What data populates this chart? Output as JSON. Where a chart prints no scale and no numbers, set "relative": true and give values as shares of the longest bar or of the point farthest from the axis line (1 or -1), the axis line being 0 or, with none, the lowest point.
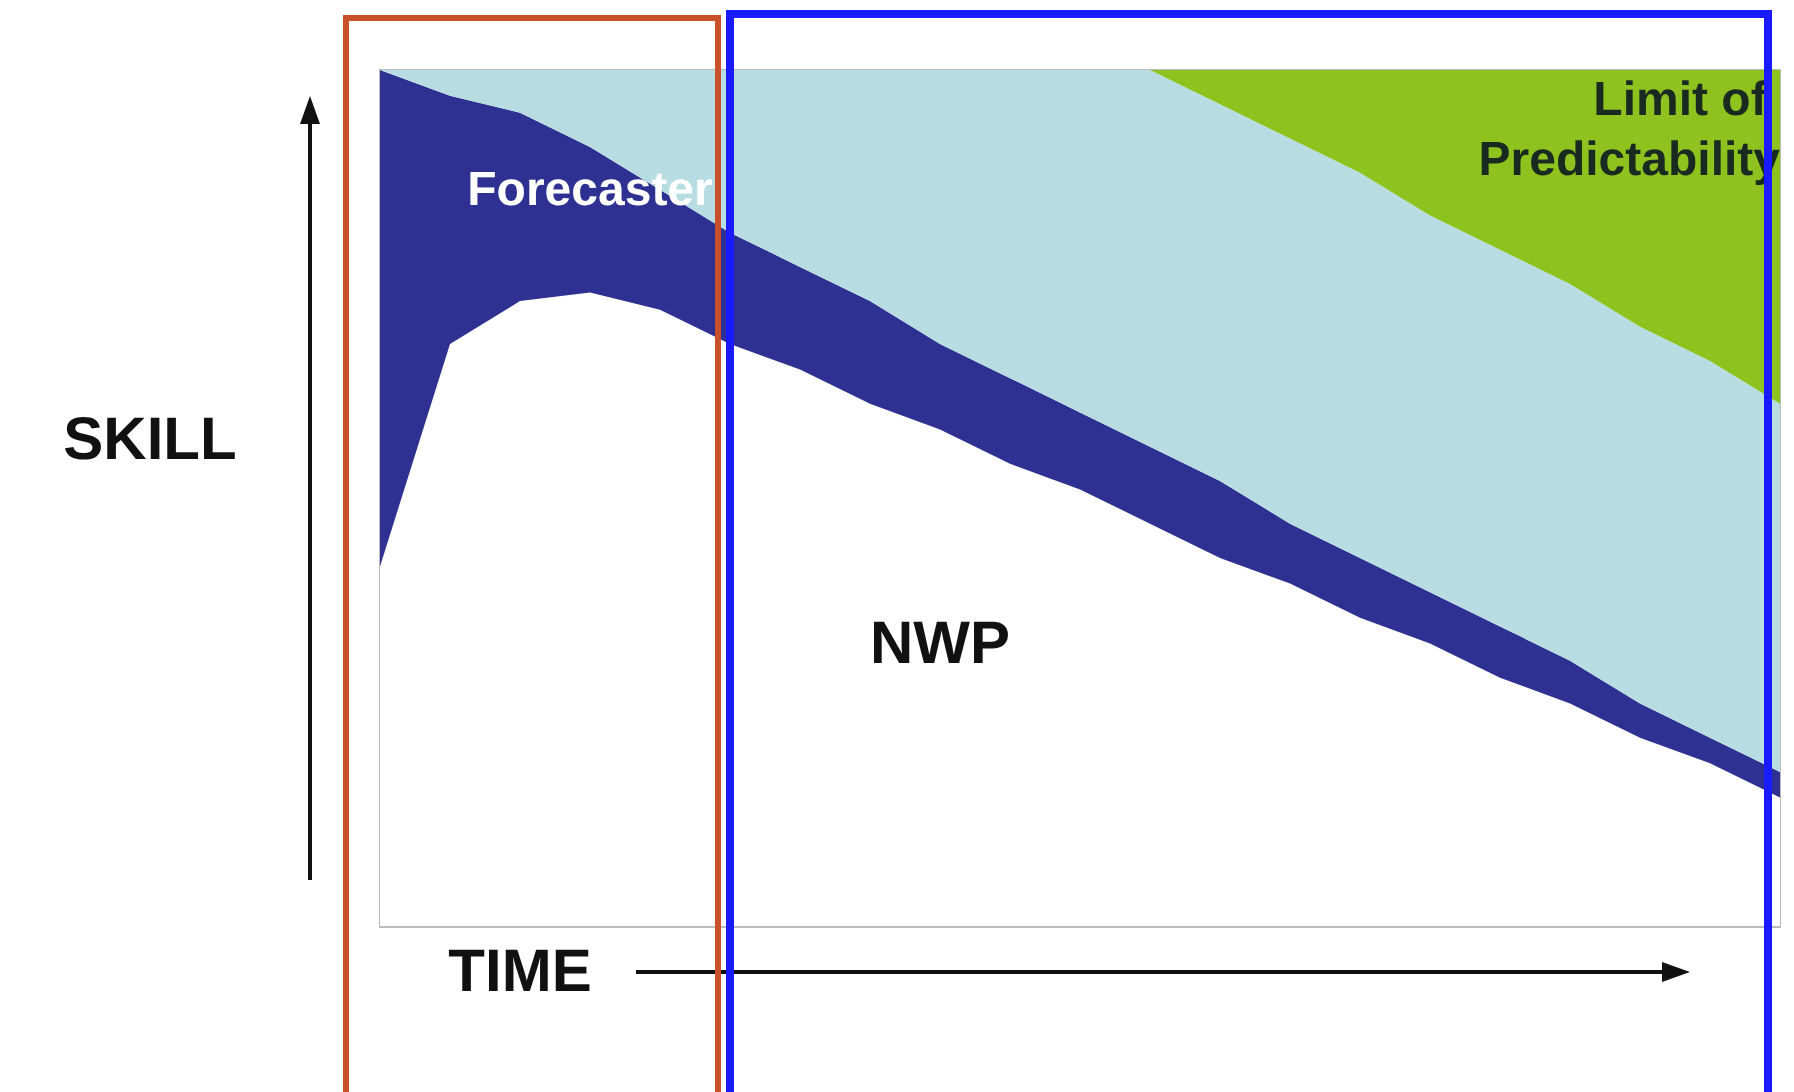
{
  "chart_data": {
    "type": "area",
    "relative": true,
    "stacked": true,
    "xlabel": "TIME",
    "ylabel": "SKILL",
    "legend": false,
    "grid": false,
    "marker": "none",
    "categories": [
      null,
      null,
      null,
      null,
      null,
      null,
      null,
      null,
      null,
      null,
      null,
      null,
      null,
      null,
      null,
      null,
      null,
      null,
      null,
      null,
      null
    ],
    "series": [
      {
        "name": "NWP",
        "color": "#ffffff",
        "values": [
          0.42,
          0.68,
          0.73,
          0.74,
          0.72,
          0.68,
          0.65,
          0.61,
          0.58,
          0.54,
          0.51,
          0.47,
          0.43,
          0.4,
          0.36,
          0.33,
          0.29,
          0.26,
          0.22,
          0.19,
          0.15
        ]
      },
      {
        "name": "Forecaster",
        "color": "#2e3192",
        "values": [
          0.58,
          0.29,
          0.22,
          0.17,
          0.14,
          0.13,
          0.12,
          0.12,
          0.1,
          0.1,
          0.09,
          0.09,
          0.09,
          0.07,
          0.07,
          0.06,
          0.06,
          0.05,
          0.04,
          0.03,
          0.03
        ]
      },
      {
        "color": "#b7dde3",
        "values": [
          0,
          0.03,
          0.05,
          0.09,
          0.14,
          0.19,
          0.23,
          0.27,
          0.32,
          0.36,
          0.4,
          0.44,
          0.44,
          0.45,
          0.45,
          0.44,
          0.44,
          0.44,
          0.44,
          0.44,
          0.43
        ]
      },
      {
        "name": "Limit of Predictability",
        "color": "#8dc21f",
        "values": [
          0,
          0,
          0,
          0,
          0,
          0,
          0,
          0,
          0,
          0,
          0,
          0,
          0.04,
          0.08,
          0.12,
          0.17,
          0.21,
          0.25,
          0.3,
          0.34,
          0.39
        ]
      }
    ]
  }
}
